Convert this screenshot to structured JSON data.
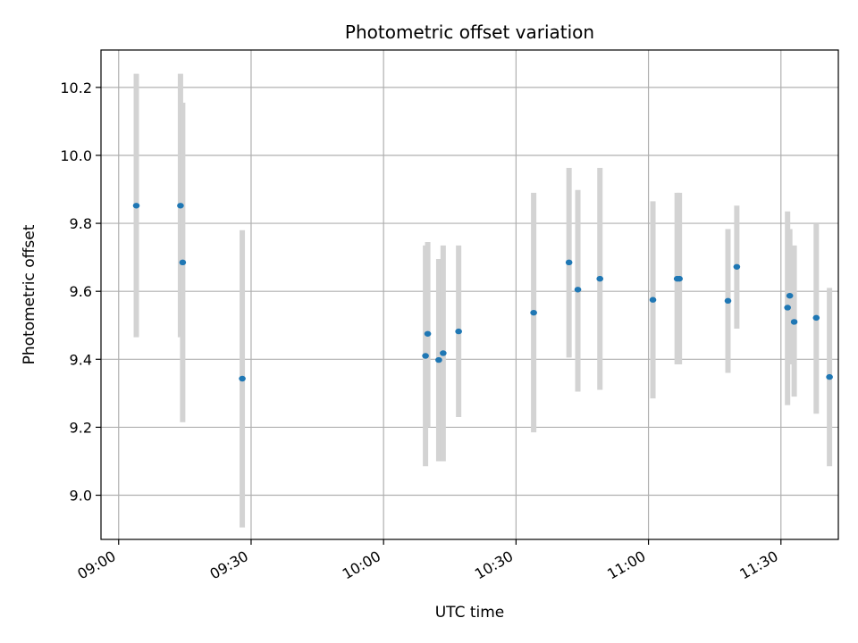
{
  "chart_data": {
    "type": "scatter",
    "title": "Photometric offset variation",
    "xlabel": "UTC time",
    "ylabel": "Photometric offset",
    "xlim": [
      "08:56",
      "11:43"
    ],
    "ylim": [
      8.87,
      10.31
    ],
    "x_ticks": [
      "09:00",
      "09:30",
      "10:00",
      "10:30",
      "11:00",
      "11:30"
    ],
    "y_ticks": [
      "9.0",
      "9.2",
      "9.4",
      "9.6",
      "9.8",
      "10.0",
      "10.2"
    ],
    "grid": true,
    "colors": {
      "point": "#1f77b4",
      "errorbar": "#d3d3d3",
      "grid": "#b0b0b0"
    },
    "points": [
      {
        "t": "09:04",
        "y": 9.852,
        "lo": 9.465,
        "hi": 10.24
      },
      {
        "t": "09:14",
        "y": 9.852,
        "lo": 9.465,
        "hi": 10.24
      },
      {
        "t": "09:14.5",
        "y": 9.685,
        "lo": 9.215,
        "hi": 10.155
      },
      {
        "t": "09:28",
        "y": 9.343,
        "lo": 8.905,
        "hi": 9.78
      },
      {
        "t": "10:09.5",
        "y": 9.41,
        "lo": 9.085,
        "hi": 9.735
      },
      {
        "t": "10:10",
        "y": 9.475,
        "lo": 9.2,
        "hi": 9.745
      },
      {
        "t": "10:12.5",
        "y": 9.398,
        "lo": 9.1,
        "hi": 9.695
      },
      {
        "t": "10:13.5",
        "y": 9.418,
        "lo": 9.1,
        "hi": 9.735
      },
      {
        "t": "10:17",
        "y": 9.482,
        "lo": 9.23,
        "hi": 9.735
      },
      {
        "t": "10:34",
        "y": 9.537,
        "lo": 9.185,
        "hi": 9.89
      },
      {
        "t": "10:42",
        "y": 9.685,
        "lo": 9.405,
        "hi": 9.963
      },
      {
        "t": "10:44",
        "y": 9.605,
        "lo": 9.305,
        "hi": 9.898
      },
      {
        "t": "10:49",
        "y": 9.637,
        "lo": 9.31,
        "hi": 9.963
      },
      {
        "t": "11:01",
        "y": 9.575,
        "lo": 9.285,
        "hi": 9.865
      },
      {
        "t": "11:06.5",
        "y": 9.637,
        "lo": 9.385,
        "hi": 9.89
      },
      {
        "t": "11:07",
        "y": 9.637,
        "lo": 9.385,
        "hi": 9.89
      },
      {
        "t": "11:18",
        "y": 9.572,
        "lo": 9.36,
        "hi": 9.783
      },
      {
        "t": "11:20",
        "y": 9.672,
        "lo": 9.49,
        "hi": 9.852
      },
      {
        "t": "11:31.5",
        "y": 9.552,
        "lo": 9.265,
        "hi": 9.835
      },
      {
        "t": "11:32",
        "y": 9.587,
        "lo": 9.385,
        "hi": 9.783
      },
      {
        "t": "11:33",
        "y": 9.51,
        "lo": 9.29,
        "hi": 9.735
      },
      {
        "t": "11:38",
        "y": 9.522,
        "lo": 9.24,
        "hi": 9.8
      },
      {
        "t": "11:41",
        "y": 9.348,
        "lo": 9.085,
        "hi": 9.61
      }
    ]
  }
}
